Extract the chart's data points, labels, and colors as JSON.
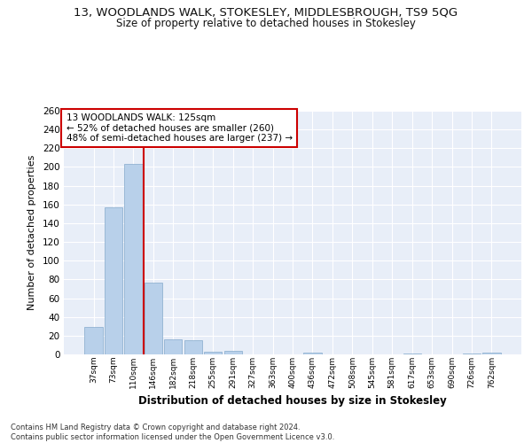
{
  "title": "13, WOODLANDS WALK, STOKESLEY, MIDDLESBROUGH, TS9 5QG",
  "subtitle": "Size of property relative to detached houses in Stokesley",
  "xlabel": "Distribution of detached houses by size in Stokesley",
  "ylabel": "Number of detached properties",
  "categories": [
    "37sqm",
    "73sqm",
    "110sqm",
    "146sqm",
    "182sqm",
    "218sqm",
    "255sqm",
    "291sqm",
    "327sqm",
    "363sqm",
    "400sqm",
    "436sqm",
    "472sqm",
    "508sqm",
    "545sqm",
    "581sqm",
    "617sqm",
    "653sqm",
    "690sqm",
    "726sqm",
    "762sqm"
  ],
  "values": [
    29,
    157,
    203,
    77,
    16,
    15,
    3,
    4,
    0,
    0,
    0,
    2,
    0,
    0,
    0,
    0,
    1,
    0,
    0,
    1,
    2
  ],
  "bar_color": "#b8d0ea",
  "bar_edge_color": "#85aacc",
  "vline_color": "#cc0000",
  "vline_pos": 2.5,
  "annotation_text": "13 WOODLANDS WALK: 125sqm\n← 52% of detached houses are smaller (260)\n48% of semi-detached houses are larger (237) →",
  "ylim_max": 260,
  "yticks": [
    0,
    20,
    40,
    60,
    80,
    100,
    120,
    140,
    160,
    180,
    200,
    220,
    240,
    260
  ],
  "fig_bg_color": "#ffffff",
  "plot_bg_color": "#e8eef8",
  "grid_color": "#ffffff",
  "footer": "Contains HM Land Registry data © Crown copyright and database right 2024.\nContains public sector information licensed under the Open Government Licence v3.0."
}
